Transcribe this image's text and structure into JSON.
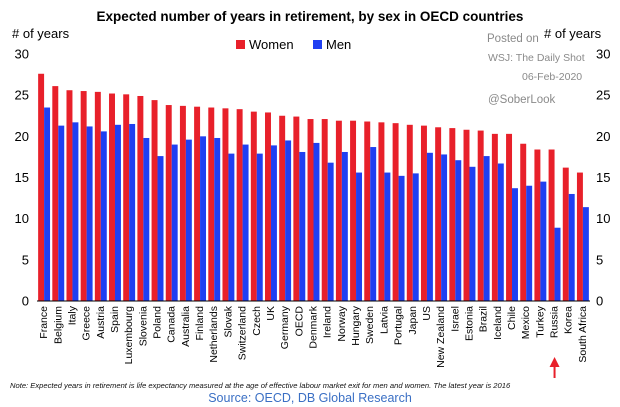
{
  "chart_data": {
    "type": "bar",
    "title": "Expected number of years in retirement, by sex in OECD countries",
    "ylabel_left": "# of years",
    "ylabel_right": "# of years",
    "ylim": [
      0,
      30
    ],
    "yticks": [
      0,
      5,
      10,
      15,
      20,
      25,
      30
    ],
    "legend_position": "top",
    "grid": false,
    "categories": [
      "France",
      "Belgium",
      "Italy",
      "Greece",
      "Austria",
      "Spain",
      "Luxembourg",
      "Slovenia",
      "Poland",
      "Canada",
      "Australia",
      "Finland",
      "Netherlands",
      "Slovak",
      "Switzerland",
      "Czech",
      "UK",
      "Germany",
      "OECD",
      "Denmark",
      "Ireland",
      "Norway",
      "Hungary",
      "Sweden",
      "Latvia",
      "Portugal",
      "Japan",
      "US",
      "New Zealand",
      "Israel",
      "Estonia",
      "Brazil",
      "Iceland",
      "Chile",
      "Mexico",
      "Turkey",
      "Russia",
      "Korea",
      "South Africa"
    ],
    "series": [
      {
        "name": "Women",
        "color": "#e8202a",
        "values": [
          27.6,
          26.1,
          25.6,
          25.5,
          25.4,
          25.2,
          25.1,
          24.9,
          24.4,
          23.8,
          23.7,
          23.6,
          23.5,
          23.4,
          23.3,
          23.0,
          22.9,
          22.5,
          22.4,
          22.1,
          22.1,
          21.9,
          21.9,
          21.8,
          21.7,
          21.6,
          21.4,
          21.3,
          21.1,
          21.0,
          20.8,
          20.7,
          20.3,
          20.3,
          19.1,
          18.4,
          18.4,
          16.2,
          15.6
        ]
      },
      {
        "name": "Men",
        "color": "#1f3ff2",
        "values": [
          23.5,
          21.3,
          21.7,
          21.2,
          20.6,
          21.4,
          21.5,
          19.8,
          17.6,
          19.0,
          19.6,
          20.0,
          19.8,
          17.9,
          19.0,
          17.9,
          18.9,
          19.5,
          18.1,
          19.2,
          16.8,
          18.1,
          15.6,
          18.7,
          15.6,
          15.2,
          15.5,
          18.0,
          17.8,
          17.1,
          16.3,
          17.6,
          16.7,
          13.7,
          14.0,
          14.5,
          8.9,
          13.0,
          11.4
        ]
      }
    ]
  },
  "watermark": {
    "posted_on": "Posted on",
    "source_name": "WSJ: The Daily Shot",
    "date": "06-Feb-2020",
    "handle": "@SoberLook"
  },
  "annotation": {
    "highlight": "Russia",
    "color": "#e8202a"
  },
  "footer": {
    "note": "Note: Expected years in retirement is life expectancy measured at the age of effective labour market exit for men and women. The latest year is 2016",
    "source": "Source: OECD, DB Global Research"
  }
}
